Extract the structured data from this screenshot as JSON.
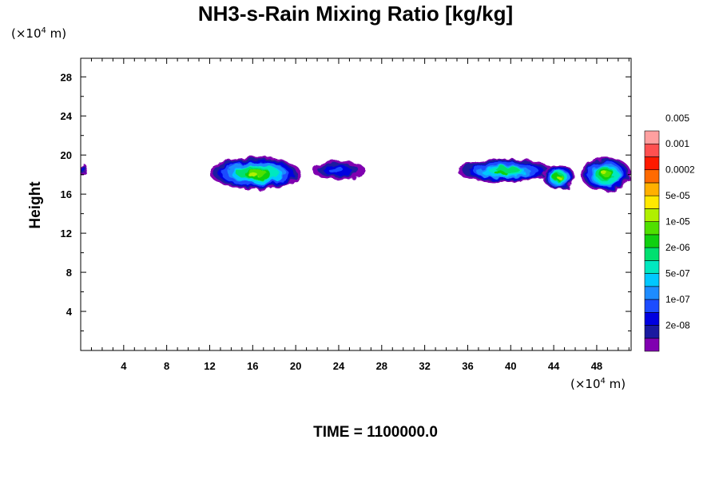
{
  "chart_data": {
    "type": "heatmap",
    "title": "NH3-s-Rain Mixing Ratio [kg/kg]",
    "ylabel": "Height",
    "xlabel": "",
    "x_unit": "(×10⁴ m)",
    "y_unit": "(×10⁴ m)",
    "x_unit_mantissa": "(×10",
    "x_unit_exp": "4",
    "x_unit_tail": " m)",
    "xlim": [
      0,
      51.2
    ],
    "ylim": [
      0,
      29.9
    ],
    "x_ticks": [
      4,
      8,
      12,
      16,
      20,
      24,
      28,
      32,
      36,
      40,
      44,
      48
    ],
    "y_ticks": [
      4,
      8,
      12,
      16,
      20,
      24,
      28
    ],
    "x_tick_labels": [
      "4",
      "8",
      "12",
      "16",
      "20",
      "24",
      "28",
      "32",
      "36",
      "40",
      "44",
      "48"
    ],
    "y_tick_labels": [
      "4",
      "8",
      "12",
      "16",
      "20",
      "24",
      "28"
    ],
    "grid": false,
    "colorbar": {
      "colors": [
        "#8000b0",
        "#1a1aa0",
        "#0000e0",
        "#1c4cff",
        "#1e8cff",
        "#00c8ff",
        "#00e8c0",
        "#00e070",
        "#10d010",
        "#50e000",
        "#b0f000",
        "#ffe800",
        "#ffb000",
        "#ff6a00",
        "#ff1a00",
        "#ff5050",
        "#ffa0a0"
      ],
      "labels": [
        "2e-08",
        "1e-07",
        "5e-07",
        "2e-06",
        "1e-05",
        "5e-05",
        "0.0002",
        "0.001",
        "0.005"
      ]
    },
    "clouds": [
      {
        "x_range": [
          0,
          0.5
        ],
        "y_range": [
          17.8,
          19.2
        ],
        "peak_level": 2
      },
      {
        "x_range": [
          12,
          20.5
        ],
        "y_range": [
          16.5,
          19.8
        ],
        "peak_level": 10
      },
      {
        "x_range": [
          21.5,
          26.5
        ],
        "y_range": [
          17.5,
          19.4
        ],
        "peak_level": 3
      },
      {
        "x_range": [
          35,
          44
        ],
        "y_range": [
          17.2,
          19.6
        ],
        "peak_level": 8
      },
      {
        "x_range": [
          43,
          46
        ],
        "y_range": [
          16.5,
          19.0
        ],
        "peak_level": 10
      },
      {
        "x_range": [
          46.5,
          51.2
        ],
        "y_range": [
          16.3,
          19.8
        ],
        "peak_level": 10
      }
    ]
  },
  "footer": {
    "time_label": "TIME = 1100000.0"
  }
}
